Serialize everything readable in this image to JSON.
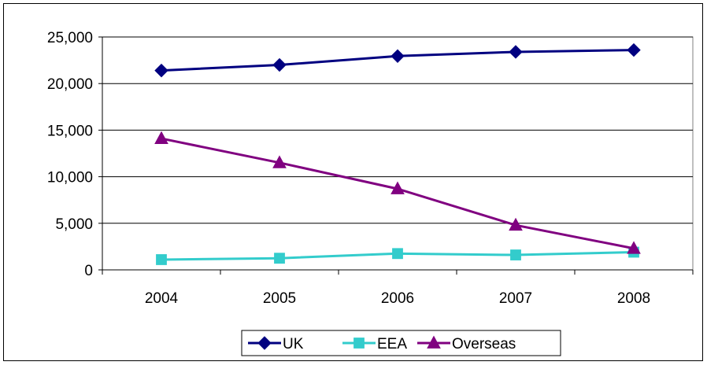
{
  "chart_data": {
    "type": "line",
    "title": "",
    "xlabel": "",
    "ylabel": "",
    "categories": [
      "2004",
      "2005",
      "2006",
      "2007",
      "2008"
    ],
    "ylim": [
      0,
      25000
    ],
    "yticks": [
      0,
      5000,
      10000,
      15000,
      20000,
      25000
    ],
    "ytick_labels": [
      "0",
      "5,000",
      "10,000",
      "15,000",
      "20,000",
      "25,000"
    ],
    "grid": "horizontal",
    "legend_position": "bottom",
    "series": [
      {
        "name": "UK",
        "values": [
          21400,
          22000,
          22950,
          23400,
          23600
        ],
        "color": "#000080",
        "marker": "diamond"
      },
      {
        "name": "EEA",
        "values": [
          1100,
          1250,
          1750,
          1600,
          1900
        ],
        "color": "#33CCCC",
        "marker": "square"
      },
      {
        "name": "Overseas",
        "values": [
          14100,
          11500,
          8700,
          4800,
          2300
        ],
        "color": "#800080",
        "marker": "triangle"
      }
    ]
  }
}
